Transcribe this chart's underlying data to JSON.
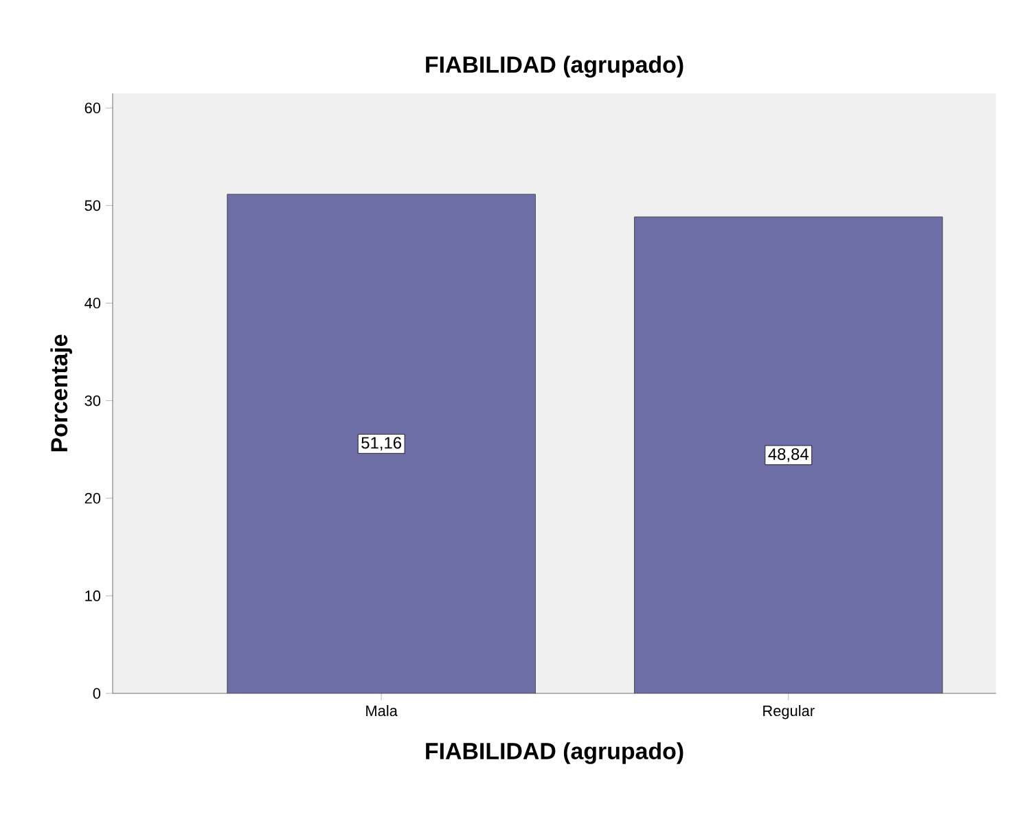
{
  "chart_data": {
    "type": "bar",
    "title": "FIABILIDAD (agrupado)",
    "xlabel": "FIABILIDAD (agrupado)",
    "ylabel": "Porcentaje",
    "categories": [
      "Mala",
      "Regular"
    ],
    "values": [
      51.16,
      48.84
    ],
    "value_labels": [
      "51,16",
      "48,84"
    ],
    "color": "#6e6ea6",
    "ylim": [
      0,
      61.5
    ],
    "yticks": [
      0,
      10,
      20,
      30,
      40,
      50,
      60
    ]
  }
}
